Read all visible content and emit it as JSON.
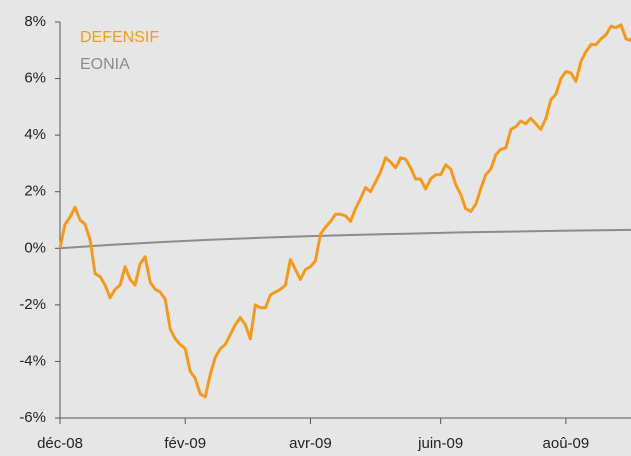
{
  "chart_data": {
    "type": "line",
    "xlim": [
      0,
      114
    ],
    "xticks": [
      {
        "value": 0,
        "label": "déc-08"
      },
      {
        "value": 25,
        "label": "fév-09"
      },
      {
        "value": 50,
        "label": "avr-09"
      },
      {
        "value": 76,
        "label": "juin-09"
      },
      {
        "value": 101,
        "label": "aoû-09"
      }
    ],
    "ylim": [
      -6,
      8
    ],
    "yticks": [
      {
        "value": -6,
        "label": "-6%"
      },
      {
        "value": -4,
        "label": "-4%"
      },
      {
        "value": -2,
        "label": "-2%"
      },
      {
        "value": 0,
        "label": "0%"
      },
      {
        "value": 2,
        "label": "2%"
      },
      {
        "value": 4,
        "label": "4%"
      },
      {
        "value": 6,
        "label": "6%"
      },
      {
        "value": 8,
        "label": "8%"
      }
    ],
    "grid": false,
    "legend": "top-left",
    "series": [
      {
        "name": "DEFENSIF",
        "color": "#f39a1e",
        "values": [
          0,
          0.85,
          1.1,
          1.45,
          1.0,
          0.85,
          0.3,
          -0.9,
          -1.0,
          -1.3,
          -1.75,
          -1.45,
          -1.3,
          -0.65,
          -1.1,
          -1.3,
          -0.55,
          -0.3,
          -1.2,
          -1.45,
          -1.55,
          -1.8,
          -2.85,
          -3.2,
          -3.4,
          -3.55,
          -4.35,
          -4.6,
          -5.15,
          -5.25,
          -4.45,
          -3.85,
          -3.55,
          -3.4,
          -3.05,
          -2.7,
          -2.45,
          -2.7,
          -3.2,
          -2.0,
          -2.1,
          -2.1,
          -1.65,
          -1.55,
          -1.45,
          -1.3,
          -0.4,
          -0.75,
          -1.1,
          -0.75,
          -0.65,
          -0.45,
          0.5,
          0.75,
          0.95,
          1.2,
          1.2,
          1.15,
          0.95,
          1.4,
          1.75,
          2.15,
          2.0,
          2.35,
          2.7,
          3.2,
          3.05,
          2.85,
          3.2,
          3.15,
          2.85,
          2.45,
          2.45,
          2.1,
          2.45,
          2.6,
          2.6,
          2.95,
          2.8,
          2.25,
          1.9,
          1.4,
          1.3,
          1.55,
          2.1,
          2.6,
          2.8,
          3.3,
          3.5,
          3.55,
          4.2,
          4.3,
          4.5,
          4.4,
          4.6,
          4.4,
          4.2,
          4.6,
          5.25,
          5.45,
          6.0,
          6.25,
          6.2,
          5.9,
          6.6,
          6.95,
          7.2,
          7.2,
          7.4,
          7.55,
          7.85,
          7.8,
          7.9,
          7.4,
          7.35,
          7.75
        ]
      },
      {
        "name": "EONIA",
        "color": "#8c8c8c",
        "x": [
          0,
          10,
          20,
          30,
          40,
          50,
          60,
          70,
          80,
          90,
          100,
          114
        ],
        "values": [
          0,
          0.12,
          0.22,
          0.3,
          0.37,
          0.43,
          0.48,
          0.52,
          0.56,
          0.59,
          0.62,
          0.65
        ]
      }
    ]
  }
}
